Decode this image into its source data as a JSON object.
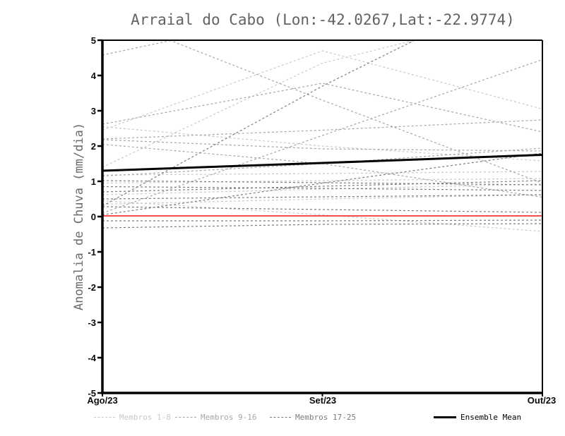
{
  "title": "Arraial do Cabo (Lon:-42.0267,Lat:-22.9774)",
  "chart_data": {
    "type": "line",
    "x_categories": [
      "Ago/23",
      "Set/23",
      "Out/23"
    ],
    "ylabel": "Anomalia de Chuva (mm/dia)",
    "ylim": [
      -5,
      5
    ],
    "ytick_labels": [
      "5",
      "4",
      "3",
      "2",
      "1",
      "0",
      "-1",
      "-2",
      "-3",
      "-4",
      "-5"
    ],
    "grid": false,
    "legend_position": "bottom",
    "legend": [
      {
        "label": "Membros 1-8",
        "color": "#c9c9c9",
        "style": "dashed"
      },
      {
        "label": "Membros 9-16",
        "color": "#a6a6a6",
        "style": "dashed"
      },
      {
        "label": "Membros 17-25",
        "color": "#7c7c7c",
        "style": "dashed"
      },
      {
        "label": "Ensemble Mean",
        "color": "#000000",
        "style": "solid"
      }
    ],
    "member_groups": [
      {
        "label": "Membros 1-8",
        "color": "#c9c9c9",
        "series": [
          [
            0.45,
            0.05,
            -0.42
          ],
          [
            0.35,
            0.5,
            0.62
          ],
          [
            0.62,
            0.78,
            0.92
          ],
          [
            0.95,
            1.02,
            1.08
          ],
          [
            1.18,
            1.22,
            1.28
          ],
          [
            1.4,
            4.35,
            5.9
          ],
          [
            2.55,
            2.0,
            1.58
          ],
          [
            2.45,
            4.7,
            3.05
          ]
        ]
      },
      {
        "label": "Membros 9-16",
        "color": "#a6a6a6",
        "series": [
          [
            4.58,
            5.9,
            6.5
          ],
          [
            5.75,
            3.3,
            0.95
          ],
          [
            2.62,
            3.78,
            2.4
          ],
          [
            0.1,
            2.3,
            4.45
          ],
          [
            2.2,
            2.45,
            2.74
          ],
          [
            2.18,
            1.92,
            1.86
          ],
          [
            2.05,
            1.5,
            0.55
          ],
          [
            1.15,
            1.5,
            1.94
          ]
        ]
      },
      {
        "label": "Membros 17-25",
        "color": "#7c7c7c",
        "series": [
          [
            1.02,
            0.96,
            0.9
          ],
          [
            0.85,
            0.8,
            0.74
          ],
          [
            0.7,
            0.86,
            1.02
          ],
          [
            0.5,
            0.56,
            0.62
          ],
          [
            0.28,
            0.2,
            0.12
          ],
          [
            0.05,
            0.95,
            1.8
          ],
          [
            -0.12,
            -0.12,
            -0.1
          ],
          [
            -0.32,
            -0.22,
            -0.2
          ],
          [
            0.3,
            3.7,
            6.8
          ]
        ]
      }
    ],
    "zero_line": {
      "color": "#f25050",
      "values": [
        0.02,
        0.02,
        0.02
      ]
    },
    "ensemble_mean": {
      "label": "Ensemble Mean",
      "color": "#000000",
      "values": [
        1.3,
        1.52,
        1.75
      ]
    }
  }
}
